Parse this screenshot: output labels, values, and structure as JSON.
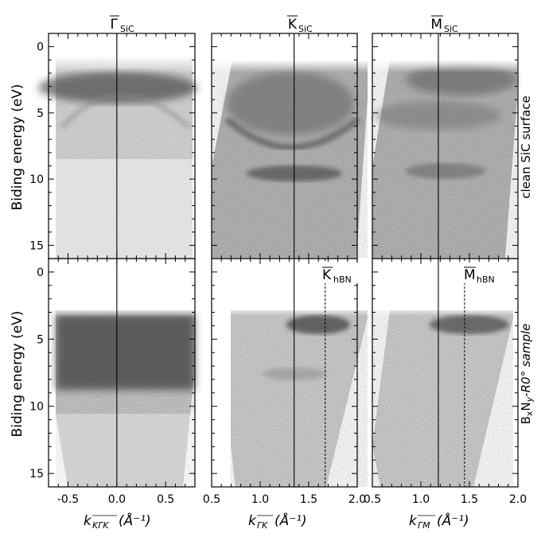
{
  "chart_data": {
    "type": "heatmap",
    "description_kind": "ARPES band maps (grayscale intensity)",
    "column_titles": [
      {
        "main": "Γ",
        "sub": "SiC"
      },
      {
        "main": "K",
        "sub": "SiC"
      },
      {
        "main": "M",
        "sub": "SiC"
      }
    ],
    "row_labels": [
      {
        "text": "clean SiC surface"
      },
      {
        "pre": "B",
        "sub1": "x",
        "mid": "N",
        "sub2": "y",
        "post": "-R0° sample"
      }
    ],
    "ylabel": "Biding energy (eV)",
    "ylim": [
      -1,
      16
    ],
    "yticks": [
      "0",
      "5",
      "10",
      "15"
    ],
    "xlabels": [
      {
        "main": "k",
        "sub": "KΓK",
        "post": "(Å⁻¹)"
      },
      {
        "main": "k",
        "sub": "ΓK",
        "post": "(Å⁻¹)"
      },
      {
        "main": "k",
        "sub": "ΓM",
        "post": "(Å⁻¹)"
      }
    ],
    "columns": [
      {
        "xlim": [
          -0.7,
          0.8
        ],
        "xticks": [
          "-0.5",
          "0.0",
          "0.5"
        ],
        "tick_values": [
          -0.5,
          0.0,
          0.5
        ],
        "vline": 0.0
      },
      {
        "xlim": [
          0.5,
          2.0
        ],
        "xticks": [
          "0.5",
          "1.0",
          "1.5",
          "2.0"
        ],
        "tick_values": [
          0.5,
          1.0,
          1.5,
          2.0
        ],
        "vline": 1.35,
        "dashed_line": 1.67
      },
      {
        "xlim": [
          0.5,
          2.0
        ],
        "xticks": [
          "0.5",
          "1.0",
          "1.5",
          "2.0"
        ],
        "tick_values": [
          0.5,
          1.0,
          1.5,
          2.0
        ],
        "vline": 1.18,
        "dashed_line": 1.45
      }
    ],
    "annotations": [
      {
        "panel": "bottom-middle",
        "main": "K",
        "sub": "hBN",
        "x": 1.67
      },
      {
        "panel": "bottom-right",
        "main": "M",
        "sub": "hBN",
        "x": 1.45
      }
    ],
    "grid": false,
    "legend": "none"
  }
}
